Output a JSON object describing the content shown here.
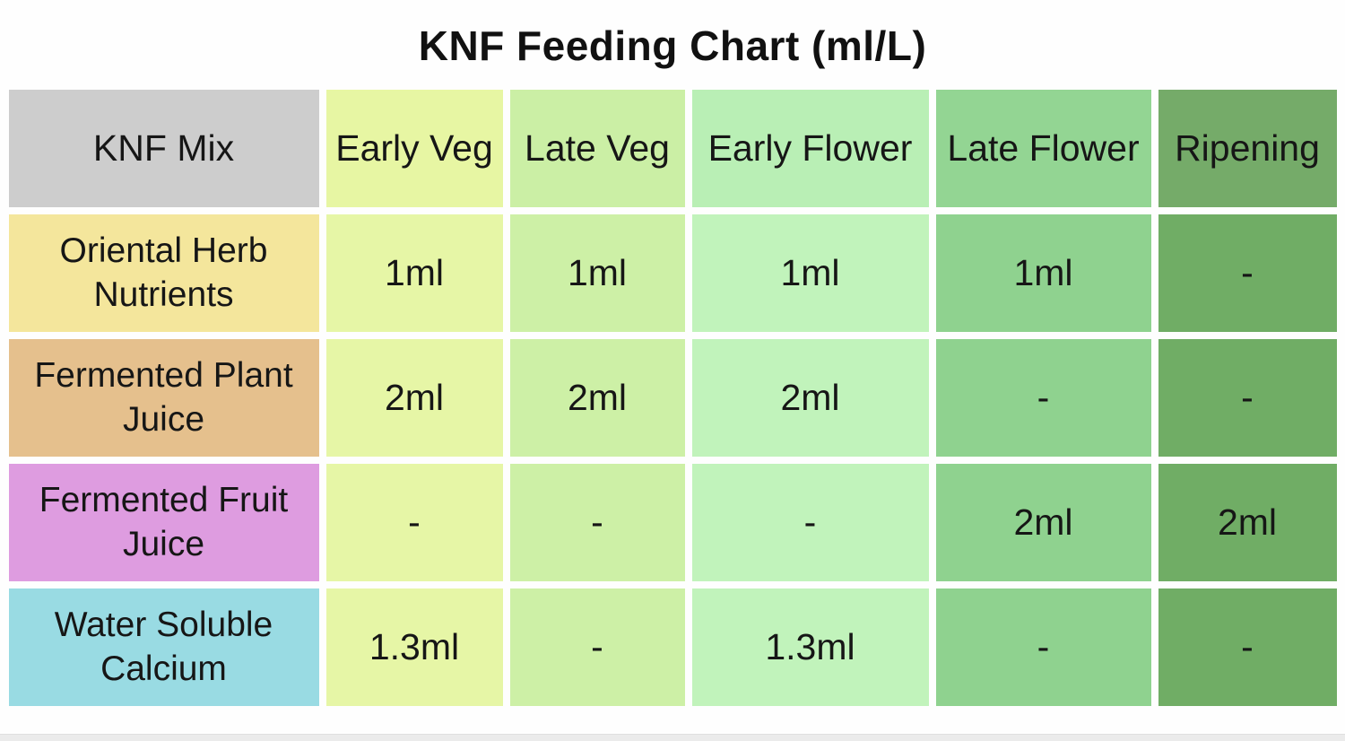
{
  "page": {
    "background": "#fefefe",
    "bottom_bar_color": "#ebebeb"
  },
  "chart_data": {
    "type": "table",
    "title": "KNF Feeding Chart (ml/L)",
    "unit": "ml/L",
    "columns": [
      "KNF Mix",
      "Early Veg",
      "Late Veg",
      "Early Flower",
      "Late Flower",
      "Ripening"
    ],
    "rows": [
      {
        "label": "Oriental Herb Nutrients",
        "values": [
          "1ml",
          "1ml",
          "1ml",
          "1ml",
          "-"
        ]
      },
      {
        "label": "Fermented Plant Juice",
        "values": [
          "2ml",
          "2ml",
          "2ml",
          "-",
          "-"
        ]
      },
      {
        "label": "Fermented Fruit Juice",
        "values": [
          "-",
          "-",
          "-",
          "2ml",
          "2ml"
        ]
      },
      {
        "label": "Water Soluble Calcium",
        "values": [
          "1.3ml",
          "-",
          "1.3ml",
          "-",
          "-"
        ]
      }
    ],
    "layout_hints": {
      "grid": "cells separated by white 8px gutters",
      "value_dash_means": "not applied at this stage"
    }
  },
  "colors": {
    "title_text": "#111111",
    "cell_text": "#161616",
    "header_cells": [
      "#cdcdcd",
      "#e7f6a3",
      "#cbefa5",
      "#b9efb5",
      "#93d593",
      "#75ab69"
    ],
    "row_label_cells": [
      "#f4e69c",
      "#e5c08d",
      "#de9ce0",
      "#99dbe3"
    ],
    "data_columns": [
      "#e6f6a6",
      "#cdf0a6",
      "#c1f3bb",
      "#8fd28f",
      "#70ad65"
    ]
  }
}
